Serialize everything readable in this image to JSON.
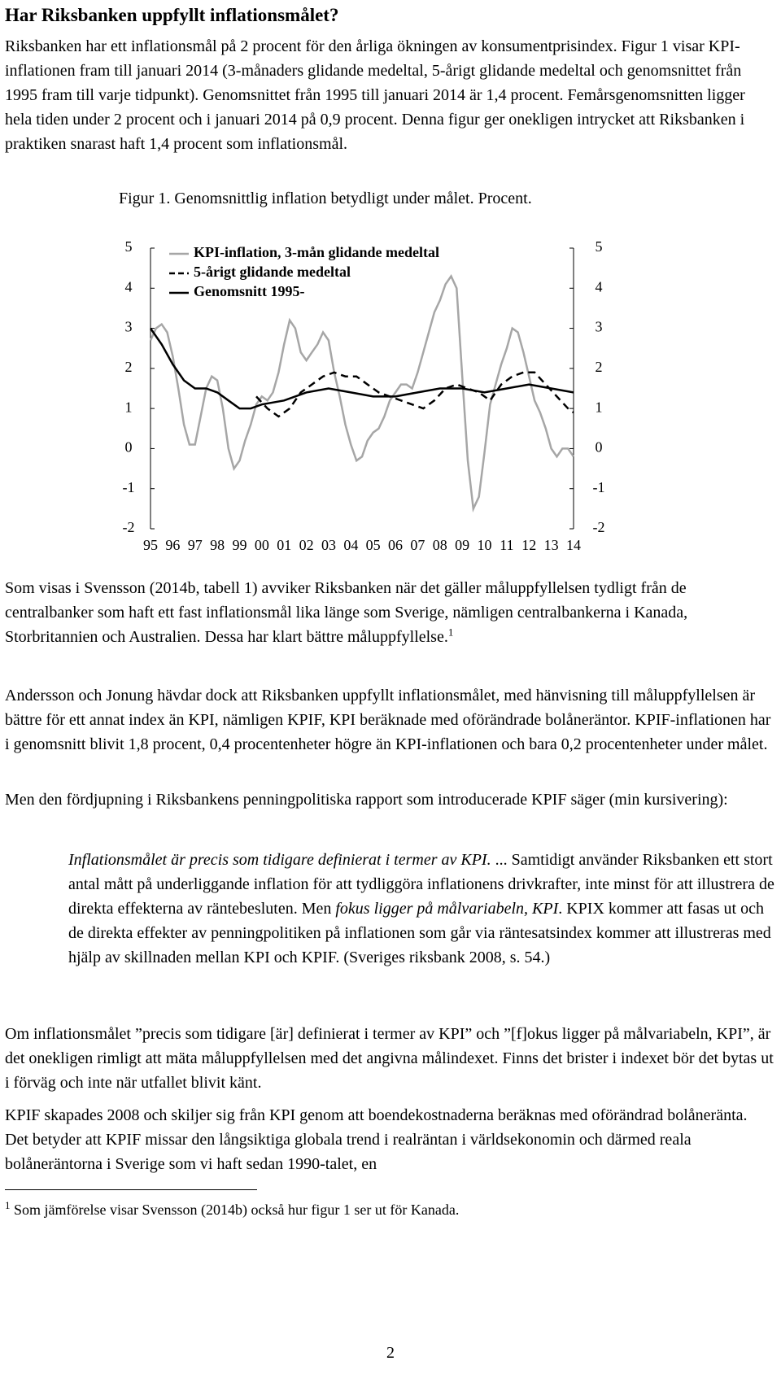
{
  "header": {
    "title": "Har Riksbanken uppfyllt inflationsmålet?"
  },
  "paragraphs": [
    "Riksbanken har ett inflationsmål på 2 procent för den årliga ökningen av konsumentprisindex. Figur 1 visar KPI-inflationen fram till januari 2014 (3-månaders glidande medeltal, 5-årigt glidande medeltal och genomsnittet från 1995 fram till varje tidpunkt). Genomsnittet från 1995 till januari 2014 är 1,4 procent. Femårsgenomsnitten ligger hela tiden under 2 procent och i januari 2014 på 0,9 procent. Denna figur ger onekligen intrycket att Riksbanken i praktiken snarast haft 1,4 procent som inflationsmål.",
    "Som visas i Svensson (2014b, tabell 1) avviker Riksbanken när det gäller måluppfyllelsen tydligt från de centralbanker som haft ett fast inflationsmål lika länge som Sverige, nämligen centralbankerna i Kanada, Storbritannien och Australien. Dessa har klart bättre måluppfyllelse.",
    "Andersson och Jonung hävdar dock att Riksbanken uppfyllt inflationsmålet, med hänvisning till måluppfyllelsen är bättre för ett annat index än KPI, nämligen KPIF, KPI beräknade med oförändrade bolåneräntor. KPIF-inflationen har i genomsnitt blivit 1,8 procent, 0,4 procentenheter högre än KPI-inflationen och bara 0,2 procentenheter under målet.",
    "Men den fördjupning i Riksbankens penningpolitiska rapport som introducerade KPIF säger (min kursivering):",
    "Om inflationsmålet ”precis som tidigare [är] definierat i termer av KPI” och ”[f]okus ligger på målvariabeln, KPI”, är det onekligen rimligt att mäta måluppfyllelsen med det angivna målindexet. Finns det brister i indexet bör det bytas ut i förväg och inte när utfallet blivit känt.",
    "KPIF skapades 2008 och skiljer sig från KPI genom att boendekostnaderna beräknas med oförändrad bolåneränta. Det betyder att KPIF missar den långsiktiga globala trend i realräntan i världsekonomin och därmed reala bolåneräntorna i Sverige som vi haft sedan 1990-talet, en"
  ],
  "footnote_ref": "1",
  "quote": [
    {
      "text": "Inflationsmålet är precis som tidigare definierat i termer av KPI.",
      "italic": true
    },
    {
      "text": " ... Samtidigt använder Riksbanken ett stort antal mått på underliggande inflation för att tydliggöra inflationens drivkrafter, inte minst för att illustrera de direkta effekterna av räntebesluten. Men "
    },
    {
      "text": "fokus ligger på målvariabeln, KPI",
      "italic": true
    },
    {
      "text": ". KPIX kommer att fasas ut och de direkta effekter av penningpolitiken på inflationen som går via räntesatsindex kommer att illustreras med hjälp av skillnaden mellan KPI och KPIF. (Sveriges riksbank 2008, s. 54.)"
    }
  ],
  "footnote": {
    "marker": "1",
    "text": "Som jämförelse visar Svensson (2014b) också hur figur 1 ser ut för Kanada."
  },
  "page_number": "2",
  "chart_data": {
    "type": "line",
    "title": "Figur 1. Genomsnittlig inflation betydligt under målet. Procent.",
    "xlim": [
      1995,
      2014
    ],
    "xticks": [
      {
        "value": 1995,
        "label": "95"
      },
      {
        "value": 1996,
        "label": "96"
      },
      {
        "value": 1997,
        "label": "97"
      },
      {
        "value": 1998,
        "label": "98"
      },
      {
        "value": 1999,
        "label": "99"
      },
      {
        "value": 2000,
        "label": "00"
      },
      {
        "value": 2001,
        "label": "01"
      },
      {
        "value": 2002,
        "label": "02"
      },
      {
        "value": 2003,
        "label": "03"
      },
      {
        "value": 2004,
        "label": "04"
      },
      {
        "value": 2005,
        "label": "05"
      },
      {
        "value": 2006,
        "label": "06"
      },
      {
        "value": 2007,
        "label": "07"
      },
      {
        "value": 2008,
        "label": "08"
      },
      {
        "value": 2009,
        "label": "09"
      },
      {
        "value": 2010,
        "label": "10"
      },
      {
        "value": 2011,
        "label": "11"
      },
      {
        "value": 2012,
        "label": "12"
      },
      {
        "value": 2013,
        "label": "13"
      },
      {
        "value": 2014,
        "label": "14"
      }
    ],
    "ylim": [
      -2,
      5
    ],
    "yticks": [
      -2,
      -1,
      0,
      1,
      2,
      3,
      4,
      5
    ],
    "y2lim": [
      -2,
      5
    ],
    "y2ticks": [
      -2,
      -1,
      0,
      1,
      2,
      3,
      4,
      5
    ],
    "legend": "top-left",
    "series": [
      {
        "name": "KPI-inflation, 3-mån glidande medeltal",
        "color": "#a6a6a6",
        "line_style": "solid",
        "x": [
          1995,
          1995.25,
          1995.5,
          1995.75,
          1996,
          1996.25,
          1996.5,
          1996.75,
          1997,
          1997.25,
          1997.5,
          1997.75,
          1998,
          1998.25,
          1998.5,
          1998.75,
          1999,
          1999.25,
          1999.5,
          1999.75,
          2000,
          2000.25,
          2000.5,
          2000.75,
          2001,
          2001.25,
          2001.5,
          2001.75,
          2002,
          2002.25,
          2002.5,
          2002.75,
          2003,
          2003.25,
          2003.5,
          2003.75,
          2004,
          2004.25,
          2004.5,
          2004.75,
          2005,
          2005.25,
          2005.5,
          2005.75,
          2006,
          2006.25,
          2006.5,
          2006.75,
          2007,
          2007.25,
          2007.5,
          2007.75,
          2008,
          2008.25,
          2008.5,
          2008.75,
          2009,
          2009.25,
          2009.5,
          2009.75,
          2010,
          2010.25,
          2010.5,
          2010.75,
          2011,
          2011.25,
          2011.5,
          2011.75,
          2012,
          2012.25,
          2012.5,
          2012.75,
          2013,
          2013.25,
          2013.5,
          2013.75,
          2014
        ],
        "values": [
          2.7,
          3.0,
          3.1,
          2.9,
          2.3,
          1.5,
          0.6,
          0.1,
          0.1,
          0.8,
          1.5,
          1.8,
          1.7,
          1.0,
          0.0,
          -0.5,
          -0.3,
          0.2,
          0.6,
          1.1,
          1.3,
          1.2,
          1.4,
          1.9,
          2.6,
          3.2,
          3.0,
          2.4,
          2.2,
          2.4,
          2.6,
          2.9,
          2.7,
          1.9,
          1.3,
          0.6,
          0.1,
          -0.3,
          -0.2,
          0.2,
          0.4,
          0.5,
          0.8,
          1.2,
          1.4,
          1.6,
          1.6,
          1.5,
          1.9,
          2.4,
          2.9,
          3.4,
          3.7,
          4.1,
          4.3,
          4.0,
          1.8,
          -0.3,
          -1.5,
          -1.2,
          -0.1,
          1.1,
          1.6,
          2.1,
          2.5,
          3.0,
          2.9,
          2.4,
          1.8,
          1.2,
          0.9,
          0.5,
          0.0,
          -0.2,
          0.0,
          0.0,
          -0.2
        ]
      },
      {
        "name": "5-årigt glidande medeltal",
        "color": "#000000",
        "line_style": "dashed",
        "x": [
          1999.75,
          2000.25,
          2000.75,
          2001.25,
          2001.75,
          2002.25,
          2002.75,
          2003.25,
          2003.75,
          2004.25,
          2004.75,
          2005.25,
          2005.75,
          2006.25,
          2006.75,
          2007.25,
          2007.75,
          2008.25,
          2008.75,
          2009.25,
          2009.75,
          2010.25,
          2010.75,
          2011.25,
          2011.75,
          2012.25,
          2012.75,
          2013.25,
          2013.75,
          2014
        ],
        "values": [
          1.3,
          1.0,
          0.8,
          1.0,
          1.4,
          1.6,
          1.8,
          1.9,
          1.8,
          1.8,
          1.6,
          1.4,
          1.3,
          1.2,
          1.1,
          1.0,
          1.2,
          1.5,
          1.6,
          1.5,
          1.4,
          1.2,
          1.6,
          1.8,
          1.9,
          1.9,
          1.6,
          1.3,
          1.0,
          0.9
        ]
      },
      {
        "name": "Genomsnitt 1995-",
        "color": "#000000",
        "line_style": "solid",
        "x": [
          1995,
          1995.5,
          1996,
          1996.5,
          1997,
          1997.5,
          1998,
          1998.5,
          1999,
          1999.5,
          2000,
          2001,
          2002,
          2003,
          2004,
          2005,
          2006,
          2007,
          2008,
          2009,
          2010,
          2011,
          2012,
          2013,
          2014
        ],
        "values": [
          3.0,
          2.6,
          2.1,
          1.7,
          1.5,
          1.5,
          1.4,
          1.2,
          1.0,
          1.0,
          1.1,
          1.2,
          1.4,
          1.5,
          1.4,
          1.3,
          1.3,
          1.4,
          1.5,
          1.5,
          1.4,
          1.5,
          1.6,
          1.5,
          1.4
        ]
      }
    ]
  }
}
